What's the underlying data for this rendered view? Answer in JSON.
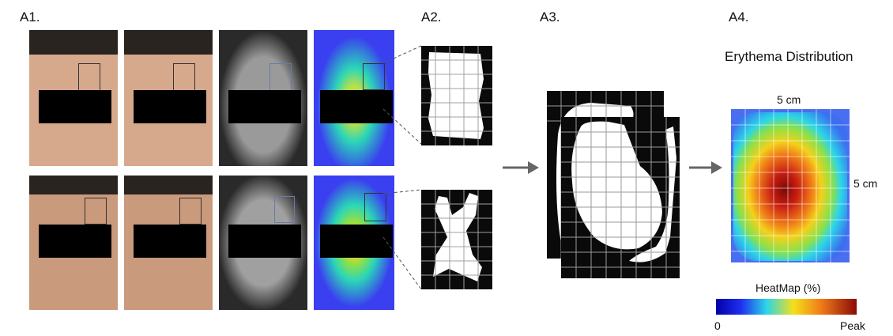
{
  "panels": {
    "a1": "A1.",
    "a2": "A2.",
    "a3": "A3.",
    "a4": "A4."
  },
  "a4": {
    "title": "Erythema Distribution",
    "width_label": "5 cm",
    "height_label": "5 cm",
    "colorbar_title": "HeatMap (%)",
    "colorbar_min": "0",
    "colorbar_max": "Peak"
  },
  "colors": {
    "skin": "#d8a98b",
    "gray_face": "#8a8a8a",
    "heatmap_bg": "#3a3ff0",
    "heat_low": "#2bd6e8",
    "heat_mid": "#f4d11a",
    "heat_high": "#c61c12"
  }
}
